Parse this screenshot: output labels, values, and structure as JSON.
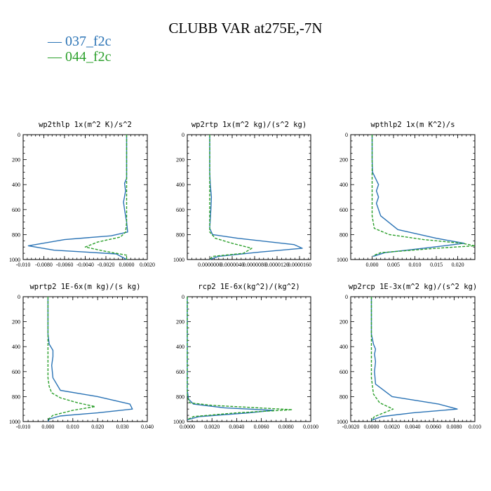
{
  "page_title": "CLUBB VAR at275E,-7N",
  "colors": {
    "series1": "#2a73b5",
    "series2": "#2ca02c"
  },
  "legend": [
    {
      "label": "037_f2c",
      "color": "#2a73b5",
      "dash": false
    },
    {
      "label": "044_f2c",
      "color": "#2ca02c",
      "dash": true
    }
  ],
  "chart_data": [
    {
      "type": "line",
      "title": "wp2thlp  1x(m^2 K)/s^2",
      "xlim": [
        -0.01,
        0.002
      ],
      "ylim": [
        0,
        1000
      ],
      "y_inverted": true,
      "xticks": [
        -0.01,
        -0.008,
        -0.006,
        -0.004,
        -0.002,
        0.0,
        0.002
      ],
      "xtick_labels": [
        "-0.010",
        "-0.0080",
        "-0.0060",
        "-0.0040",
        "-0.0020",
        "0.0000",
        "0.0020"
      ],
      "yticks": [
        0,
        200,
        400,
        600,
        800,
        1000
      ],
      "ytick_labels": [
        "0",
        "200",
        "400",
        "600",
        "800",
        "1000"
      ],
      "series": [
        {
          "name": "037_f2c",
          "x": [
            0.0,
            0.0,
            0.0,
            0.0,
            -0.0002,
            -0.0001,
            -0.0003,
            -0.0002,
            0.0,
            0.0001,
            -0.0015,
            -0.006,
            -0.0095,
            -0.007,
            -0.001,
            0.0
          ],
          "y": [
            0,
            100,
            200,
            350,
            390,
            450,
            540,
            600,
            700,
            780,
            810,
            840,
            890,
            925,
            955,
            1000
          ]
        },
        {
          "name": "044_f2c",
          "x": [
            0.0,
            0.0,
            0.0,
            0.0,
            0.0,
            0.0,
            -0.0001,
            -0.0006,
            -0.0028,
            -0.004,
            -0.002,
            0.0,
            0.0
          ],
          "y": [
            0,
            200,
            400,
            500,
            600,
            700,
            780,
            820,
            860,
            900,
            935,
            965,
            1000
          ]
        }
      ]
    },
    {
      "type": "line",
      "title": "wp2rtp  1x(m^2 kg)/(s^2 kg)",
      "xlim": [
        -4e-06,
        1.8e-05
      ],
      "ylim": [
        0,
        1000
      ],
      "y_inverted": true,
      "xticks": [
        0.0,
        4e-06,
        8e-06,
        1.2e-05,
        1.6e-05
      ],
      "xtick_labels": [
        "0.0000000",
        "0.0000040",
        "0.0000080",
        "0.0000120",
        "0.0000160"
      ],
      "yticks": [
        0,
        200,
        400,
        600,
        800,
        1000
      ],
      "ytick_labels": [
        "0",
        "200",
        "400",
        "600",
        "800",
        "1000"
      ],
      "series": [
        {
          "name": "037_f2c",
          "x": [
            0.0,
            0.0,
            0.0,
            1e-07,
            3e-07,
            2e-07,
            0.0,
            5e-07,
            5e-06,
            1.5e-05,
            1.65e-05,
            9e-06,
            1.5e-06,
            0.0
          ],
          "y": [
            0,
            100,
            300,
            400,
            500,
            600,
            750,
            800,
            830,
            880,
            910,
            940,
            975,
            1000
          ]
        },
        {
          "name": "044_f2c",
          "x": [
            0.0,
            0.0,
            0.0,
            0.0,
            1e-06,
            4e-06,
            7.5e-06,
            6e-06,
            5e-07,
            0.0
          ],
          "y": [
            0,
            300,
            600,
            780,
            830,
            870,
            910,
            950,
            975,
            1000
          ]
        }
      ]
    },
    {
      "type": "line",
      "title": "wpthlp2  1x(m K^2)/s",
      "xlim": [
        -0.005,
        0.024
      ],
      "ylim": [
        0,
        1000
      ],
      "y_inverted": true,
      "xticks": [
        0.0,
        0.005,
        0.01,
        0.015,
        0.02
      ],
      "xtick_labels": [
        "0.000",
        "0.005",
        "0.010",
        "0.015",
        "0.020"
      ],
      "yticks": [
        0,
        200,
        400,
        600,
        800,
        1000
      ],
      "ytick_labels": [
        "0",
        "200",
        "400",
        "600",
        "800",
        "1000"
      ],
      "series": [
        {
          "name": "037_f2c",
          "x": [
            0.0,
            0.0,
            0.0001,
            0.0015,
            0.001,
            0.0015,
            0.001,
            0.002,
            0.006,
            0.015,
            0.0215,
            0.012,
            0.003,
            0.0002
          ],
          "y": [
            0,
            200,
            300,
            400,
            450,
            500,
            550,
            650,
            760,
            830,
            870,
            910,
            945,
            975
          ]
        },
        {
          "name": "044_f2c",
          "x": [
            0.0,
            0.0,
            0.0,
            0.0,
            0.0005,
            0.004,
            0.012,
            0.021,
            0.024,
            0.015,
            0.002,
            0.0002
          ],
          "y": [
            0,
            300,
            500,
            650,
            750,
            800,
            840,
            870,
            890,
            910,
            945,
            970
          ]
        }
      ]
    },
    {
      "type": "line",
      "title": "wprtp2  1E-6x(m kg)/(s kg)",
      "xlim": [
        -0.01,
        0.04
      ],
      "ylim": [
        0,
        1000
      ],
      "y_inverted": true,
      "xticks": [
        -0.01,
        0.0,
        0.01,
        0.02,
        0.03,
        0.04
      ],
      "xtick_labels": [
        "-0.010",
        "0.000",
        "0.010",
        "0.020",
        "0.030",
        "0.040"
      ],
      "yticks": [
        0,
        200,
        400,
        600,
        800,
        1000
      ],
      "ytick_labels": [
        "0",
        "200",
        "400",
        "600",
        "800",
        "1000"
      ],
      "series": [
        {
          "name": "037_f2c",
          "x": [
            0.0,
            0.0,
            0.0005,
            0.002,
            0.002,
            0.0015,
            0.002,
            0.005,
            0.02,
            0.033,
            0.034,
            0.02,
            0.005,
            0.0005,
            0.0
          ],
          "y": [
            0,
            300,
            380,
            430,
            480,
            550,
            650,
            750,
            800,
            860,
            900,
            930,
            955,
            980,
            1000
          ]
        },
        {
          "name": "044_f2c",
          "x": [
            0.0,
            0.0,
            0.0,
            0.0,
            0.0005,
            0.0015,
            0.005,
            0.012,
            0.019,
            0.01,
            0.002,
            0.0
          ],
          "y": [
            0,
            300,
            500,
            650,
            720,
            770,
            810,
            850,
            880,
            910,
            950,
            985
          ]
        }
      ]
    },
    {
      "type": "line",
      "title": "rcp2  1E-6x(kg^2)/(kg^2)",
      "xlim": [
        0.0,
        0.01
      ],
      "ylim": [
        0,
        1000
      ],
      "y_inverted": true,
      "xticks": [
        0.0,
        0.002,
        0.004,
        0.006,
        0.008,
        0.01
      ],
      "xtick_labels": [
        "0.0000",
        "0.0020",
        "0.0040",
        "0.0060",
        "0.0080",
        "0.0100"
      ],
      "yticks": [
        0,
        200,
        400,
        600,
        800,
        1000
      ],
      "ytick_labels": [
        "0",
        "200",
        "400",
        "600",
        "800",
        "1000"
      ],
      "series": [
        {
          "name": "037_f2c",
          "x": [
            0.0,
            0.0,
            0.0,
            0.0,
            0.0001,
            0.0005,
            0.003,
            0.007,
            0.005,
            0.001,
            0.0
          ],
          "y": [
            0,
            300,
            600,
            750,
            820,
            860,
            890,
            910,
            930,
            960,
            985
          ]
        },
        {
          "name": "044_f2c",
          "x": [
            0.0,
            0.0,
            0.0,
            0.0,
            0.0002,
            0.002,
            0.0085,
            0.004,
            0.0005,
            0.0
          ],
          "y": [
            0,
            400,
            650,
            800,
            850,
            870,
            905,
            930,
            960,
            985
          ]
        }
      ]
    },
    {
      "type": "line",
      "title": "wp2rcp  1E-3x(m^2 kg)/(s^2 kg)",
      "xlim": [
        -0.002,
        0.01
      ],
      "ylim": [
        0,
        1000
      ],
      "y_inverted": true,
      "xticks": [
        -0.002,
        0.0,
        0.002,
        0.004,
        0.006,
        0.008,
        0.01
      ],
      "xtick_labels": [
        "-0.0020",
        "0.0000",
        "0.0020",
        "0.0040",
        "0.0060",
        "0.0080",
        "0.010"
      ],
      "yticks": [
        0,
        200,
        400,
        600,
        800,
        1000
      ],
      "ytick_labels": [
        "0",
        "200",
        "400",
        "600",
        "800",
        "1000"
      ],
      "series": [
        {
          "name": "037_f2c",
          "x": [
            0.0,
            0.0,
            0.0002,
            0.0004,
            0.0003,
            0.0004,
            0.0003,
            0.0004,
            0.002,
            0.0065,
            0.0083,
            0.004,
            0.001,
            0.0
          ],
          "y": [
            0,
            300,
            380,
            420,
            460,
            520,
            600,
            700,
            800,
            860,
            900,
            930,
            960,
            990
          ]
        },
        {
          "name": "044_f2c",
          "x": [
            0.0,
            0.0,
            0.0,
            0.0002,
            0.0008,
            0.0021,
            0.0012,
            0.0003,
            0.0
          ],
          "y": [
            0,
            400,
            650,
            780,
            850,
            900,
            930,
            960,
            990
          ]
        }
      ]
    }
  ]
}
